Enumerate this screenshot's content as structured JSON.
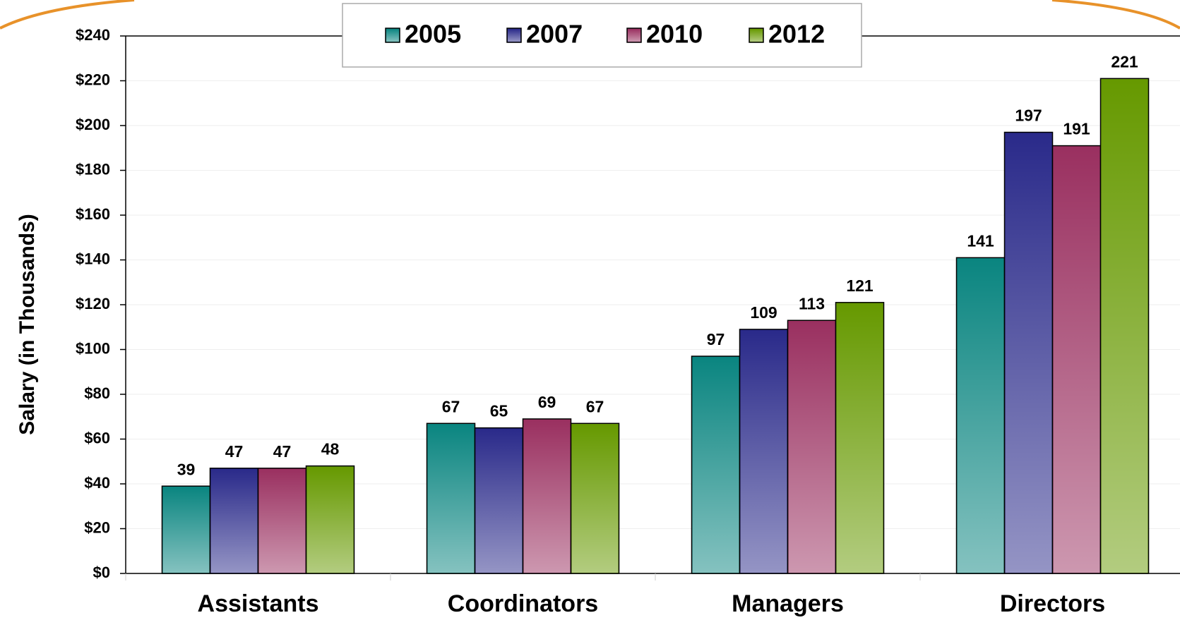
{
  "chart_data": {
    "type": "bar",
    "y_label": "Salary (in Thousands)",
    "categories": [
      "Assistants",
      "Coordinators",
      "Managers",
      "Directors"
    ],
    "series": [
      {
        "name": "2005",
        "color": "#0a8580",
        "values": [
          39,
          67,
          97,
          141
        ]
      },
      {
        "name": "2007",
        "color": "#2a2a8a",
        "values": [
          47,
          65,
          109,
          197
        ]
      },
      {
        "name": "2010",
        "color": "#9a3060",
        "values": [
          47,
          69,
          113,
          191
        ]
      },
      {
        "name": "2012",
        "color": "#669900",
        "values": [
          48,
          67,
          121,
          221
        ]
      }
    ],
    "ylim": [
      0,
      240
    ],
    "yticks": [
      {
        "value": 0,
        "label": "$0"
      },
      {
        "value": 20,
        "label": "$20"
      },
      {
        "value": 40,
        "label": "$40"
      },
      {
        "value": 60,
        "label": "$60"
      },
      {
        "value": 80,
        "label": "$80"
      },
      {
        "value": 100,
        "label": "$100"
      },
      {
        "value": 120,
        "label": "$120"
      },
      {
        "value": 140,
        "label": "$140"
      },
      {
        "value": 160,
        "label": "$160"
      },
      {
        "value": 180,
        "label": "$180"
      },
      {
        "value": 200,
        "label": "$200"
      },
      {
        "value": 220,
        "label": "$220"
      },
      {
        "value": 240,
        "label": "$240"
      }
    ],
    "grid": true,
    "legend": "top"
  }
}
